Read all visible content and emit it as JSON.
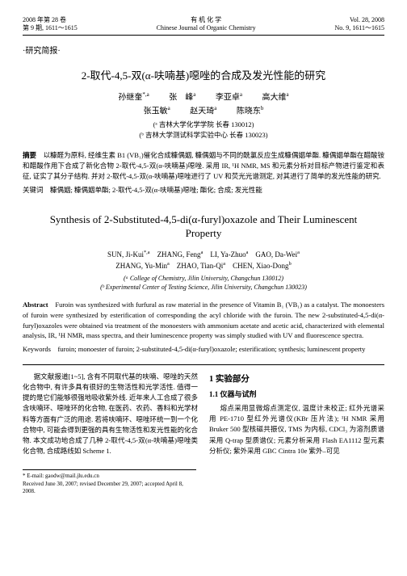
{
  "header": {
    "left_line1": "2008 年第 28 卷",
    "left_line2": "第 9 期, 1611～1615",
    "center_line1": "有 机 化 学",
    "center_line2": "Chinese Journal of Organic Chemistry",
    "right_line1": "Vol. 28, 2008",
    "right_line2": "No. 9, 1611～1615"
  },
  "section_label": "·研究简报·",
  "title_cn": "2-取代-4,5-双(α-呋喃基)噁唑的合成及发光性能的研究",
  "authors_cn_line1_a": "孙继奎",
  "authors_cn_line1_b": "张　峰",
  "authors_cn_line1_c": "李亚卓",
  "authors_cn_line1_d": "高大维",
  "authors_cn_line2_a": "张玉敏",
  "authors_cn_line2_b": "赵天琦",
  "authors_cn_line2_c": "陈晓东",
  "sup_a": "*,a",
  "sup_b": "a",
  "sup_c": "a",
  "sup_d": "a",
  "sup_e": "a",
  "sup_f": "a",
  "sup_g": "b",
  "affil_cn_a": "(ᵃ 吉林大学化学学院  长春 130012)",
  "affil_cn_b": "(ᵇ 吉林大学测试科学实验中心  长春 130023)",
  "abstract_cn_label": "摘要",
  "abstract_cn_body": "　以糠醛为原料, 经维生素 B1 (VB₁)催化合成糠偶姻, 糠偶姻与不同的酰氯反应生成糠偶姻单酯. 糠偶姻单酯在醋酸铵和醋酸作用下合成了新化合物 2-取代-4,5-双(α-呋喃基)噁唑. 采用 IR, ¹H NMR, MS 和元素分析对目标产物进行鉴定和表征, 证实了其分子结构. 并对 2-取代-4,5-双(α-呋喃基)噁唑进行了 UV 和荧光光谱测定, 对其进行了简单的发光性能的研究.",
  "kw_cn_label": "关键词",
  "kw_cn_body": "　糠偶姻; 糠偶姻单酯; 2-取代-4,5-双(α-呋喃基)噁唑; 酯化; 合成; 发光性能",
  "title_en": "Synthesis of 2-Substituted-4,5-di(α-furyl)oxazole and Their Luminescent Property",
  "authors_en_line1": "SUN, Ji-Kui",
  "authors_en_line1_b": "ZHANG, Feng",
  "authors_en_line1_c": "LI, Ya-Zhuo",
  "authors_en_line1_d": "GAO, Da-Wei",
  "authors_en_line2_a": "ZHANG, Yu-Min",
  "authors_en_line2_b": "ZHAO, Tian-Qi",
  "authors_en_line2_c": "CHEN, Xiao-Dong",
  "affil_en_a": "(ᵃ College of Chemistry, Jilin University, Changchun 130012)",
  "affil_en_b": "(ᵇ Experimental Center of Testing Science, Jilin University, Changchun 130023)",
  "abstract_en_label": "Abstract",
  "abstract_en_body": "　Furoin was synthesized with furfural as raw material in the presence of Vitamin B₁ (VB₁) as a catalyst. The monoesters of furoin were synthesized by esterification of corresponding the acyl chloride with the furoin. The new 2-substituted-4,5-di(α-furyl)oxazoles were obtained via treatment of the monoesters with ammonium acetate and acetic acid, characterized with elemental analysis, IR, ¹H NMR, mass spectra, and their luminescence property was simply studied with UV and fluorescence spectra.",
  "kw_en_label": "Keywords",
  "kw_en_body": "　furoin; monoester of furoin; 2-substituted-4,5-di(α-furyl)oxazole; esterification; synthesis; luminescent property",
  "col_left_p1": "据文献报道[1~5], 含有不同取代基的呋喃、噁唑的天然化合物中, 有许多具有很好的生物活性和光学活性. 值得一提的是它们能够很强地吸收紫外线. 近年来人工合成了很多含呋喃环、噁唑环的化合物, 在医药、农药、香料和光学材料等方面有广泛的用途. 若将呋喃环、噁唑环统一到一个化合物中, 可能会得到更强的具有生物活性和发光性能的化合物. 本文成功地合成了几种 2-取代-4,5-双(α-呋喃基)噁唑类化合物, 合成路线如 Scheme 1.",
  "sec1": "1  实验部分",
  "subsec11": "1.1  仪器与试剂",
  "col_right_p1": "熔点采用显微熔点测定仪, 温度计未校正; 红外光谱采用 PE-1710 型红外光谱仪(KBr 压片法); ¹H NMR 采用 Bruker 500 型核磁共振仪, TMS 为内标, CDCl₃ 为溶剂质谱采用 Q-trap 型质谱仪; 元素分析采用 Flash EA1112 型元素分析仪; 紫外采用 GBC Cintra 10e 紫外–可见",
  "footnote_email": "* E-mail: gaodw@mail.jlu.edu.cn",
  "footnote_dates": "Received June 30, 2007; revised December 29, 2007; accepted April 8, 2008."
}
